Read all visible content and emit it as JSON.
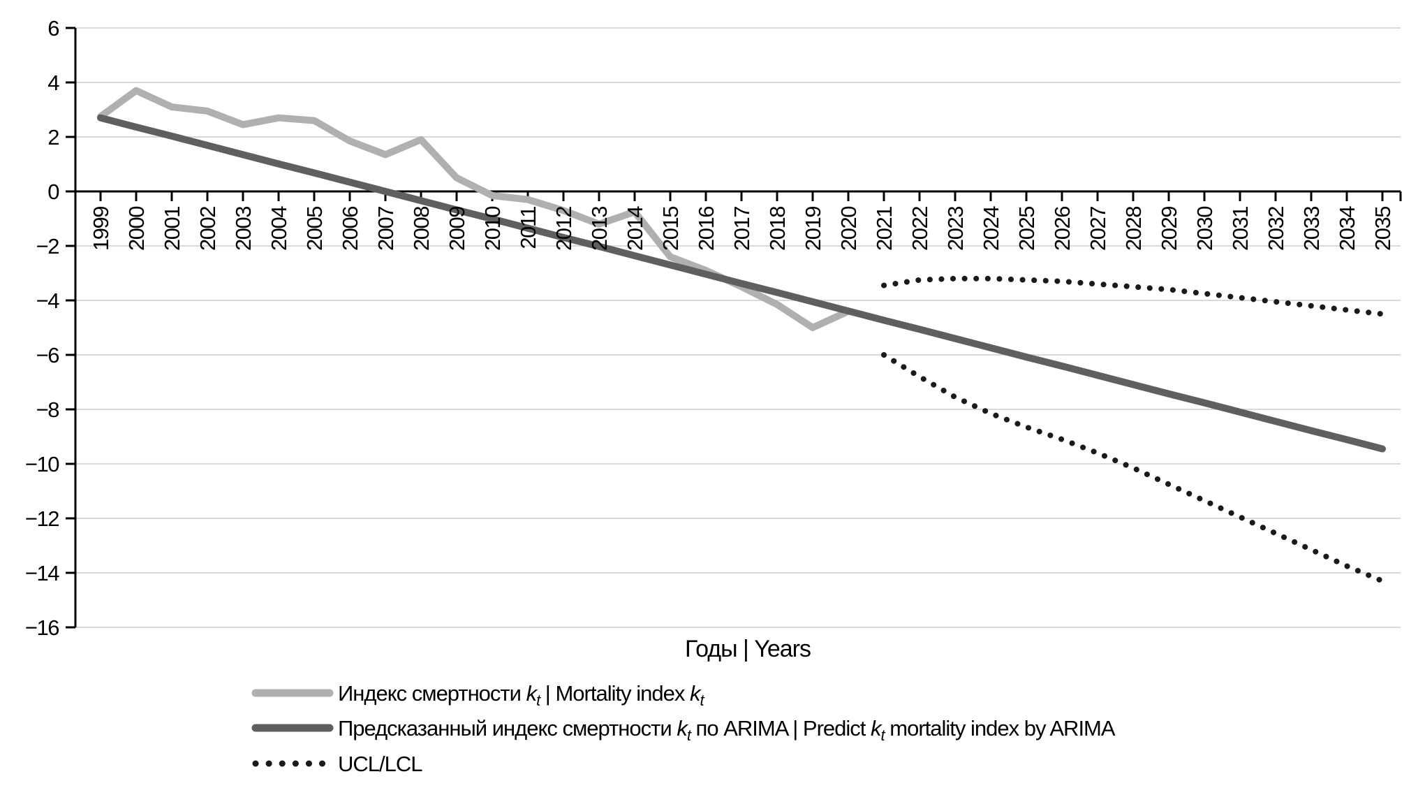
{
  "chart_data": {
    "type": "line",
    "title": "",
    "xlabel": "Годы | Years",
    "ylabel": "",
    "x_years": [
      1999,
      2000,
      2001,
      2002,
      2003,
      2004,
      2005,
      2006,
      2007,
      2008,
      2009,
      2010,
      2011,
      2012,
      2013,
      2014,
      2015,
      2016,
      2017,
      2018,
      2019,
      2020,
      2021,
      2022,
      2023,
      2024,
      2025,
      2026,
      2027,
      2028,
      2029,
      2030,
      2031,
      2032,
      2033,
      2034,
      2035
    ],
    "ylim": [
      -16,
      6
    ],
    "ytick_step": 2,
    "y_tick_labels": [
      "6",
      "4",
      "2",
      "0",
      "−2",
      "−4",
      "−6",
      "−8",
      "−10",
      "−12",
      "−14",
      "−16"
    ],
    "grid": "horizontal",
    "legend_position": "bottom-left",
    "series": [
      {
        "name": "Индекс смертности k_t | Mortality index k_t",
        "color": "#b0b0b0",
        "dash": "solid",
        "start_year": 1999,
        "values": [
          2.75,
          3.7,
          3.1,
          2.95,
          2.45,
          2.7,
          2.6,
          1.85,
          1.35,
          1.9,
          0.5,
          -0.15,
          -0.3,
          -0.7,
          -1.2,
          -0.75,
          -2.4,
          -2.9,
          -3.5,
          -4.15,
          -5.0,
          -4.4
        ]
      },
      {
        "name": "Предсказанный индекс смертности k_t по ARIMA | Predict k_t mortality index by ARIMA",
        "color": "#5f5f5f",
        "dash": "solid",
        "start_year": 1999,
        "values": [
          2.7,
          2.36,
          2.03,
          1.69,
          1.35,
          1.01,
          0.68,
          0.34,
          0.0,
          -0.34,
          -0.68,
          -1.01,
          -1.35,
          -1.69,
          -2.02,
          -2.36,
          -2.7,
          -3.04,
          -3.38,
          -3.71,
          -4.05,
          -4.39,
          -4.73,
          -5.06,
          -5.4,
          -5.74,
          -6.08,
          -6.41,
          -6.75,
          -7.09,
          -7.43,
          -7.76,
          -8.1,
          -8.44,
          -8.78,
          -9.11,
          -9.45
        ]
      },
      {
        "name": "UCL/LCL",
        "color": "#1a1a1a",
        "dash": "dotted",
        "start_year": 2021,
        "values_upper": [
          -3.45,
          -3.25,
          -3.2,
          -3.2,
          -3.25,
          -3.3,
          -3.4,
          -3.5,
          -3.6,
          -3.75,
          -3.9,
          -4.05,
          -4.2,
          -4.35,
          -4.5
        ],
        "values_lower": [
          -6.0,
          -6.8,
          -7.55,
          -8.15,
          -8.65,
          -9.1,
          -9.6,
          -10.15,
          -10.75,
          -11.35,
          -11.95,
          -12.55,
          -13.15,
          -13.75,
          -14.3
        ]
      }
    ]
  },
  "colors": {
    "background": "#ffffff",
    "gridline": "#d9d9d9",
    "axis": "#000000",
    "text": "#000000"
  }
}
